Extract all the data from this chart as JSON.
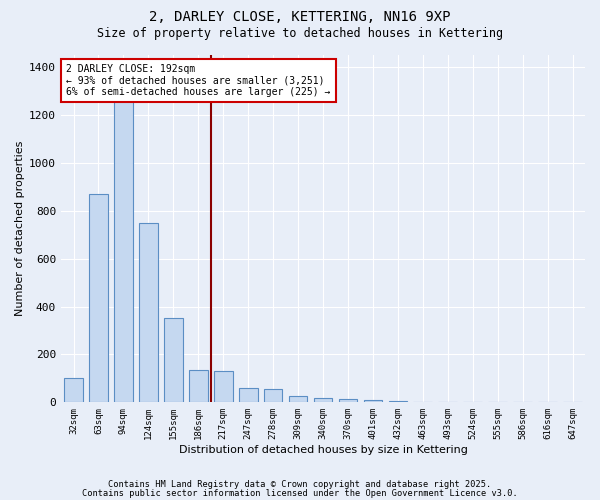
{
  "title1": "2, DARLEY CLOSE, KETTERING, NN16 9XP",
  "title2": "Size of property relative to detached houses in Kettering",
  "xlabel": "Distribution of detached houses by size in Kettering",
  "ylabel": "Number of detached properties",
  "categories": [
    "32sqm",
    "63sqm",
    "94sqm",
    "124sqm",
    "155sqm",
    "186sqm",
    "217sqm",
    "247sqm",
    "278sqm",
    "309sqm",
    "340sqm",
    "370sqm",
    "401sqm",
    "432sqm",
    "463sqm",
    "493sqm",
    "524sqm",
    "555sqm",
    "586sqm",
    "616sqm",
    "647sqm"
  ],
  "values": [
    100,
    870,
    1270,
    750,
    350,
    135,
    130,
    60,
    55,
    25,
    20,
    15,
    10,
    5,
    2,
    1,
    1,
    0,
    0,
    0,
    0
  ],
  "bar_color": "#c5d8f0",
  "bar_edge_color": "#5b8ec4",
  "annotation_text": "2 DARLEY CLOSE: 192sqm\n← 93% of detached houses are smaller (3,251)\n6% of semi-detached houses are larger (225) →",
  "annotation_box_color": "#ffffff",
  "annotation_box_edge_color": "#cc0000",
  "vline_color": "#8b0000",
  "vline_x": 5.5,
  "bg_color": "#e8eef8",
  "grid_color": "#ffffff",
  "footer1": "Contains HM Land Registry data © Crown copyright and database right 2025.",
  "footer2": "Contains public sector information licensed under the Open Government Licence v3.0.",
  "ylim": [
    0,
    1450
  ],
  "yticks": [
    0,
    200,
    400,
    600,
    800,
    1000,
    1200,
    1400
  ]
}
